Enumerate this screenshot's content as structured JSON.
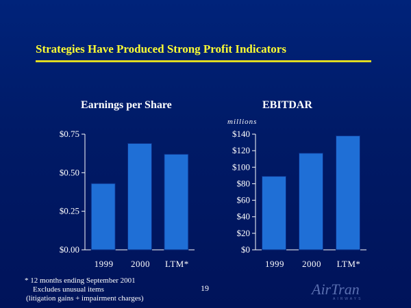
{
  "slide": {
    "title": "Strategies Have Produced Strong Profit Indicators",
    "page_number": "19",
    "logo": "AirTran",
    "logo_sub": "AIRWAYS"
  },
  "footnote": {
    "line1": "*  12 months ending September 2001",
    "line2": "Excludes unusual items",
    "line3": "(litigation gains + impairment charges)"
  },
  "colors": {
    "bar": "#1f6fd6",
    "background": "#001a66",
    "accent": "#ffff33"
  },
  "chart_data": [
    {
      "type": "bar",
      "title": "Earnings per Share",
      "categories": [
        "1999",
        "2000",
        "LTM*"
      ],
      "values": [
        0.43,
        0.69,
        0.62
      ],
      "ylim": [
        0,
        0.75
      ],
      "yticks": [
        0,
        0.25,
        0.5,
        0.75
      ],
      "ytick_labels": [
        "$0.00",
        "$0.25",
        "$0.50",
        "$0.75"
      ],
      "xlabel": "",
      "ylabel": ""
    },
    {
      "type": "bar",
      "title": "EBITDAR",
      "units": "millions",
      "categories": [
        "1999",
        "2000",
        "LTM*"
      ],
      "values": [
        89,
        117,
        138
      ],
      "ylim": [
        0,
        140
      ],
      "yticks": [
        0,
        20,
        40,
        60,
        80,
        100,
        120,
        140
      ],
      "ytick_labels": [
        "$0",
        "$20",
        "$40",
        "$60",
        "$80",
        "$100",
        "$120",
        "$140"
      ],
      "xlabel": "",
      "ylabel": ""
    }
  ]
}
